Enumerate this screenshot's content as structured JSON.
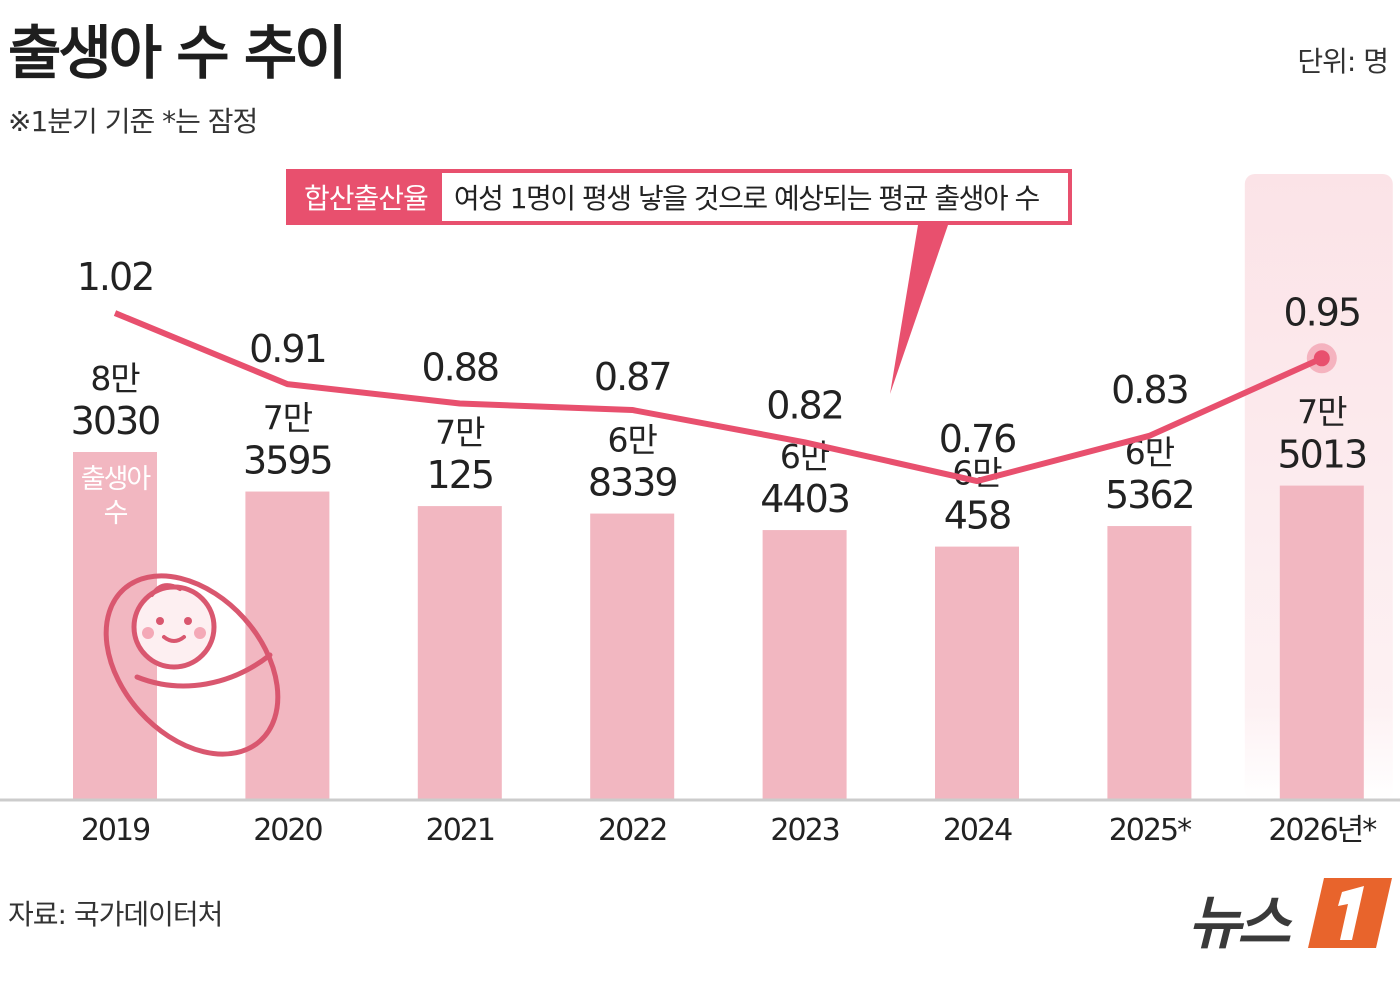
{
  "header": {
    "title": "출생아 수 추이",
    "note": "※1분기 기준  *는 잠정",
    "unit": "단위: 명"
  },
  "legend": {
    "key": "합산출산율",
    "description": "여성 1명이 평생 낳을 것으로 예상되는 평균 출생아 수"
  },
  "bar_series_label": "출생아 수",
  "footer": {
    "source": "자료: 국가데이터처",
    "logo_text": "뉴스"
  },
  "colors": {
    "bar": "#f2b7c1",
    "line": "#e8506e",
    "highlight": "#fbe3e7",
    "axis": "#cccccc"
  },
  "chart_data": {
    "type": "bar",
    "categories": [
      "2019",
      "2020",
      "2021",
      "2022",
      "2023",
      "2024",
      "2025*",
      "2026년*"
    ],
    "series": [
      {
        "name": "출생아 수",
        "type": "bar",
        "values": [
          83030,
          73595,
          70125,
          68339,
          64403,
          60458,
          65362,
          75013
        ],
        "labels_top": [
          "8만",
          "7만",
          "7만",
          "6만",
          "6만",
          "6만",
          "6만",
          "7만"
        ],
        "labels_bottom": [
          "3030",
          "3595",
          "125",
          "8339",
          "4403",
          "458",
          "5362",
          "5013"
        ]
      },
      {
        "name": "합산출산율",
        "type": "line",
        "values": [
          1.02,
          0.91,
          0.88,
          0.87,
          0.82,
          0.76,
          0.83,
          0.95
        ],
        "labels": [
          "1.02",
          "0.91",
          "0.88",
          "0.87",
          "0.82",
          "0.76",
          "0.83",
          "0.95"
        ]
      }
    ],
    "highlight_category": "2026년*",
    "grid": false
  }
}
